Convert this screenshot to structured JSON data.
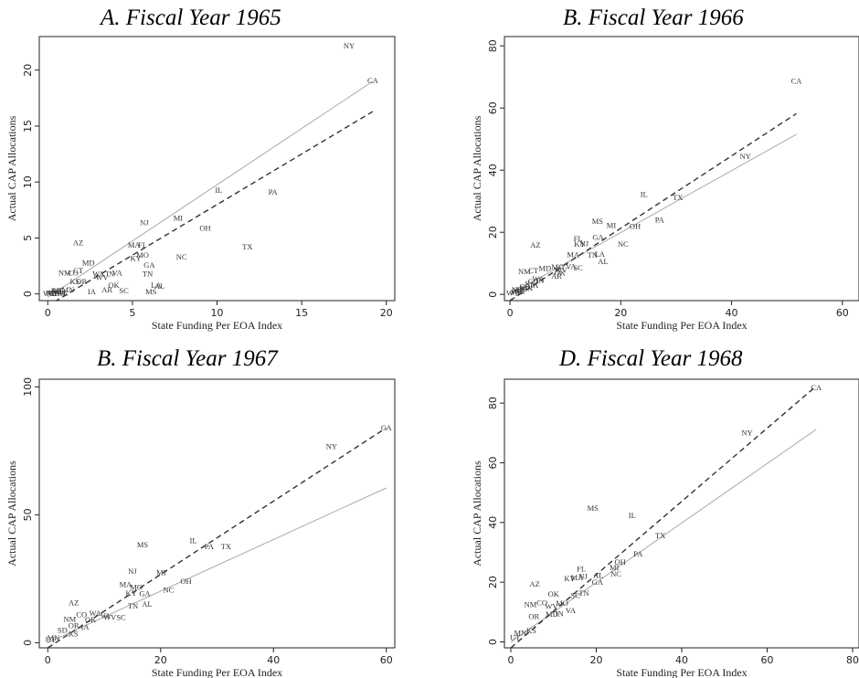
{
  "chart_data": [
    {
      "type": "scatter",
      "title": "A.   Fiscal Year 1965",
      "xlabel": "State Funding Per EOA Index",
      "ylabel": "Actual CAP Allocations",
      "xlim": [
        -0.5,
        20.5
      ],
      "ylim": [
        -0.6,
        23.0
      ],
      "xticks": [
        0,
        5,
        10,
        15,
        20
      ],
      "yticks": [
        0,
        5,
        10,
        15,
        20
      ],
      "grid": false,
      "points": [
        {
          "label": "NY",
          "x": 17.8,
          "y": 22.2
        },
        {
          "label": "CA",
          "x": 19.2,
          "y": 19.1
        },
        {
          "label": "IL",
          "x": 10.1,
          "y": 9.3
        },
        {
          "label": "PA",
          "x": 13.3,
          "y": 9.1
        },
        {
          "label": "MI",
          "x": 7.7,
          "y": 6.8
        },
        {
          "label": "NJ",
          "x": 5.7,
          "y": 6.4
        },
        {
          "label": "OH",
          "x": 9.3,
          "y": 5.9
        },
        {
          "label": "AZ",
          "x": 1.8,
          "y": 4.6
        },
        {
          "label": "MA",
          "x": 5.1,
          "y": 4.4
        },
        {
          "label": "FL",
          "x": 5.6,
          "y": 4.4
        },
        {
          "label": "TX",
          "x": 11.8,
          "y": 4.2
        },
        {
          "label": "MO",
          "x": 5.6,
          "y": 3.5
        },
        {
          "label": "NC",
          "x": 7.9,
          "y": 3.3
        },
        {
          "label": "KY",
          "x": 5.2,
          "y": 3.2
        },
        {
          "label": "MD",
          "x": 2.4,
          "y": 2.8
        },
        {
          "label": "GA",
          "x": 6.0,
          "y": 2.6
        },
        {
          "label": "CT",
          "x": 1.8,
          "y": 2.1
        },
        {
          "label": "NM",
          "x": 1.0,
          "y": 1.9
        },
        {
          "label": "CO",
          "x": 1.5,
          "y": 1.9
        },
        {
          "label": "TN",
          "x": 5.9,
          "y": 1.8
        },
        {
          "label": "VA",
          "x": 4.1,
          "y": 1.9
        },
        {
          "label": "WA",
          "x": 3.0,
          "y": 1.8
        },
        {
          "label": "IN",
          "x": 3.7,
          "y": 1.8
        },
        {
          "label": "WV",
          "x": 3.2,
          "y": 1.5
        },
        {
          "label": "KS",
          "x": 1.6,
          "y": 1.1
        },
        {
          "label": "OR",
          "x": 2.0,
          "y": 1.1
        },
        {
          "label": "LA",
          "x": 6.4,
          "y": 0.8
        },
        {
          "label": "AL",
          "x": 6.6,
          "y": 0.7
        },
        {
          "label": "MS",
          "x": 6.1,
          "y": 0.2
        },
        {
          "label": "SC",
          "x": 4.5,
          "y": 0.3
        },
        {
          "label": "AR",
          "x": 3.5,
          "y": 0.4
        },
        {
          "label": "OK",
          "x": 3.9,
          "y": 0.8
        },
        {
          "label": "IA",
          "x": 2.6,
          "y": 0.2
        },
        {
          "label": "MN",
          "x": 1.2,
          "y": 0.4
        },
        {
          "label": "ME",
          "x": 0.6,
          "y": 0.2
        },
        {
          "label": "NE",
          "x": 0.9,
          "y": 0.1
        },
        {
          "label": "UT",
          "x": 0.6,
          "y": 0.3
        },
        {
          "label": "VT",
          "x": 0.3,
          "y": 0.1
        },
        {
          "label": "ND",
          "x": 0.2,
          "y": 0.1
        },
        {
          "label": "SD",
          "x": 0.4,
          "y": 0.05
        },
        {
          "label": "WY",
          "x": 0.1,
          "y": 0.05
        },
        {
          "label": "NH",
          "x": 0.7,
          "y": 0.1
        },
        {
          "label": "DE",
          "x": 0.5,
          "y": 0.3
        }
      ],
      "lines": [
        {
          "style": "solid",
          "color": "#aaaaaa",
          "x": [
            0,
            19.2
          ],
          "y": [
            -0.3,
            19.0
          ]
        },
        {
          "style": "dashed",
          "color": "#333333",
          "x": [
            0.4,
            19.2
          ],
          "y": [
            -0.7,
            16.3
          ]
        }
      ]
    },
    {
      "type": "scatter",
      "title": "B. Fiscal Year 1966",
      "xlabel": "State Funding Per EOA Index",
      "ylabel": "Actual CAP Allocations",
      "xlim": [
        -1,
        63
      ],
      "ylim": [
        -2,
        83
      ],
      "xticks": [
        0,
        20,
        40,
        60
      ],
      "yticks": [
        0,
        20,
        40,
        60,
        80
      ],
      "grid": false,
      "points": [
        {
          "label": "CA",
          "x": 51.7,
          "y": 68.8
        },
        {
          "label": "NY",
          "x": 42.5,
          "y": 44.5
        },
        {
          "label": "IL",
          "x": 24.2,
          "y": 32.2
        },
        {
          "label": "TX",
          "x": 30.3,
          "y": 31.3
        },
        {
          "label": "PA",
          "x": 27.0,
          "y": 24.0
        },
        {
          "label": "MS",
          "x": 15.8,
          "y": 23.6
        },
        {
          "label": "MI",
          "x": 18.3,
          "y": 22.2
        },
        {
          "label": "OH",
          "x": 22.6,
          "y": 21.9
        },
        {
          "label": "AZ",
          "x": 4.6,
          "y": 16.0
        },
        {
          "label": "FL",
          "x": 12.3,
          "y": 18.0
        },
        {
          "label": "GA",
          "x": 15.9,
          "y": 18.4
        },
        {
          "label": "KY",
          "x": 12.6,
          "y": 16.3
        },
        {
          "label": "NJ",
          "x": 13.4,
          "y": 16.4
        },
        {
          "label": "NC",
          "x": 20.4,
          "y": 16.3
        },
        {
          "label": "MA",
          "x": 11.4,
          "y": 12.9
        },
        {
          "label": "LA",
          "x": 16.2,
          "y": 13.0
        },
        {
          "label": "TN",
          "x": 14.9,
          "y": 12.7
        },
        {
          "label": "AL",
          "x": 16.8,
          "y": 10.6
        },
        {
          "label": "NM",
          "x": 2.6,
          "y": 7.4
        },
        {
          "label": "CT",
          "x": 4.2,
          "y": 7.7
        },
        {
          "label": "VA",
          "x": 11.0,
          "y": 9.0
        },
        {
          "label": "MD",
          "x": 6.3,
          "y": 8.4
        },
        {
          "label": "MO",
          "x": 8.6,
          "y": 8.9
        },
        {
          "label": "SC",
          "x": 12.3,
          "y": 8.6
        },
        {
          "label": "WV",
          "x": 9.2,
          "y": 7.9
        },
        {
          "label": "WA",
          "x": 5.1,
          "y": 5.0
        },
        {
          "label": "OK",
          "x": 9.0,
          "y": 7.0
        },
        {
          "label": "AR",
          "x": 8.4,
          "y": 6.0
        },
        {
          "label": "CO",
          "x": 4.2,
          "y": 4.2
        },
        {
          "label": "KS",
          "x": 3.6,
          "y": 3.4
        },
        {
          "label": "IA",
          "x": 4.4,
          "y": 3.0
        },
        {
          "label": "IN",
          "x": 5.4,
          "y": 4.5
        },
        {
          "label": "OR",
          "x": 2.7,
          "y": 2.5
        },
        {
          "label": "MN",
          "x": 3.0,
          "y": 2.0
        },
        {
          "label": "UT",
          "x": 2.0,
          "y": 1.5
        },
        {
          "label": "ME",
          "x": 1.5,
          "y": 1.2
        },
        {
          "label": "NE",
          "x": 1.8,
          "y": 0.9
        },
        {
          "label": "WY",
          "x": 0.5,
          "y": 0.5
        },
        {
          "label": "VT",
          "x": 1.0,
          "y": 0.6
        },
        {
          "label": "ND",
          "x": 1.3,
          "y": 1.5
        }
      ],
      "lines": [
        {
          "style": "solid",
          "color": "#aaaaaa",
          "x": [
            0,
            51.7
          ],
          "y": [
            0,
            51.5
          ]
        },
        {
          "style": "dashed",
          "color": "#333333",
          "x": [
            0,
            51.7
          ],
          "y": [
            -2,
            58.2
          ]
        }
      ]
    },
    {
      "type": "scatter",
      "title": "B.   Fiscal Year 1967",
      "xlabel": "State Funding Per EOA Index",
      "ylabel": "Actual CAP Allocations",
      "xlim": [
        -1.5,
        61.5
      ],
      "ylim": [
        -2,
        103
      ],
      "xticks": [
        0,
        20,
        40,
        60
      ],
      "yticks": [
        0,
        50,
        100
      ],
      "grid": false,
      "points": [
        {
          "label": "CA",
          "x": 60.0,
          "y": 84.0
        },
        {
          "label": "NY",
          "x": 50.3,
          "y": 76.7
        },
        {
          "label": "MS",
          "x": 16.8,
          "y": 38.4
        },
        {
          "label": "IL",
          "x": 25.8,
          "y": 40.0
        },
        {
          "label": "PA",
          "x": 28.6,
          "y": 37.6
        },
        {
          "label": "TX",
          "x": 31.6,
          "y": 37.6
        },
        {
          "label": "NJ",
          "x": 15.0,
          "y": 28.0
        },
        {
          "label": "MI",
          "x": 20.1,
          "y": 27.4
        },
        {
          "label": "OH",
          "x": 24.5,
          "y": 24.0
        },
        {
          "label": "MA",
          "x": 13.8,
          "y": 22.8
        },
        {
          "label": "MO",
          "x": 15.7,
          "y": 21.8
        },
        {
          "label": "NC",
          "x": 21.4,
          "y": 20.6
        },
        {
          "label": "KY",
          "x": 14.8,
          "y": 19.4
        },
        {
          "label": "GA",
          "x": 17.2,
          "y": 19.2
        },
        {
          "label": "AZ",
          "x": 4.6,
          "y": 15.6
        },
        {
          "label": "TN",
          "x": 15.1,
          "y": 14.4
        },
        {
          "label": "AL",
          "x": 17.6,
          "y": 15.2
        },
        {
          "label": "CO",
          "x": 6.0,
          "y": 11.0
        },
        {
          "label": "NM",
          "x": 3.9,
          "y": 9.2
        },
        {
          "label": "WA",
          "x": 8.4,
          "y": 11.6
        },
        {
          "label": "VA",
          "x": 10.2,
          "y": 10.6
        },
        {
          "label": "SC",
          "x": 13.0,
          "y": 10.0
        },
        {
          "label": "WV",
          "x": 11.0,
          "y": 10.0
        },
        {
          "label": "OK",
          "x": 7.6,
          "y": 9.0
        },
        {
          "label": "IA",
          "x": 6.6,
          "y": 6.2
        },
        {
          "label": "OR",
          "x": 4.6,
          "y": 6.8
        },
        {
          "label": "SD",
          "x": 2.6,
          "y": 5.0
        },
        {
          "label": "KS",
          "x": 4.5,
          "y": 3.6
        },
        {
          "label": "MN",
          "x": 1.0,
          "y": 2.0
        },
        {
          "label": "UT",
          "x": 0.5,
          "y": 1.2
        }
      ],
      "lines": [
        {
          "style": "solid",
          "color": "#aaaaaa",
          "x": [
            0,
            60
          ],
          "y": [
            0,
            60.5
          ]
        },
        {
          "style": "dashed",
          "color": "#333333",
          "x": [
            0,
            60
          ],
          "y": [
            -2,
            84
          ]
        }
      ]
    },
    {
      "type": "scatter",
      "title": "D. Fiscal Year 1968",
      "xlabel": "State Funding Per EOA Index",
      "ylabel": "Actual CAP Allocations",
      "xlim": [
        -1.5,
        81.5
      ],
      "ylim": [
        -2,
        88
      ],
      "xticks": [
        0,
        20,
        40,
        60,
        80
      ],
      "yticks": [
        0,
        20,
        40,
        60,
        80
      ],
      "grid": false,
      "points": [
        {
          "label": "CA",
          "x": 71.5,
          "y": 85.3
        },
        {
          "label": "NY",
          "x": 55.3,
          "y": 70.1
        },
        {
          "label": "MS",
          "x": 19.2,
          "y": 44.8
        },
        {
          "label": "IL",
          "x": 28.4,
          "y": 42.4
        },
        {
          "label": "TX",
          "x": 35.0,
          "y": 35.6
        },
        {
          "label": "PA",
          "x": 29.8,
          "y": 29.5
        },
        {
          "label": "OH",
          "x": 25.6,
          "y": 26.7
        },
        {
          "label": "MI",
          "x": 24.2,
          "y": 25.0
        },
        {
          "label": "NC",
          "x": 24.6,
          "y": 22.8
        },
        {
          "label": "AZ",
          "x": 5.6,
          "y": 19.5
        },
        {
          "label": "FL",
          "x": 16.5,
          "y": 24.5
        },
        {
          "label": "NJ",
          "x": 16.9,
          "y": 22.0
        },
        {
          "label": "KY",
          "x": 13.8,
          "y": 21.2
        },
        {
          "label": "MA",
          "x": 15.5,
          "y": 21.6
        },
        {
          "label": "AL",
          "x": 20.5,
          "y": 22.4
        },
        {
          "label": "GA",
          "x": 20.3,
          "y": 20.0
        },
        {
          "label": "TN",
          "x": 17.1,
          "y": 16.4
        },
        {
          "label": "SC",
          "x": 15.1,
          "y": 15.6
        },
        {
          "label": "NM",
          "x": 4.6,
          "y": 12.5
        },
        {
          "label": "CO",
          "x": 7.3,
          "y": 13.2
        },
        {
          "label": "OK",
          "x": 10.0,
          "y": 16.0
        },
        {
          "label": "MO",
          "x": 12.0,
          "y": 13.0
        },
        {
          "label": "WV",
          "x": 9.5,
          "y": 12.0
        },
        {
          "label": "VA",
          "x": 14.0,
          "y": 10.5
        },
        {
          "label": "IN",
          "x": 11.4,
          "y": 9.5
        },
        {
          "label": "MD",
          "x": 9.6,
          "y": 9.4
        },
        {
          "label": "OR",
          "x": 5.4,
          "y": 8.5
        },
        {
          "label": "KS",
          "x": 4.8,
          "y": 3.8
        },
        {
          "label": "MN",
          "x": 2.2,
          "y": 3.0
        },
        {
          "label": "UT",
          "x": 1.0,
          "y": 1.5
        }
      ],
      "lines": [
        {
          "style": "solid",
          "color": "#aaaaaa",
          "x": [
            0,
            71.5
          ],
          "y": [
            0,
            71.2
          ]
        },
        {
          "style": "dashed",
          "color": "#333333",
          "x": [
            0,
            71.5
          ],
          "y": [
            -2,
            85.7
          ]
        }
      ]
    }
  ]
}
